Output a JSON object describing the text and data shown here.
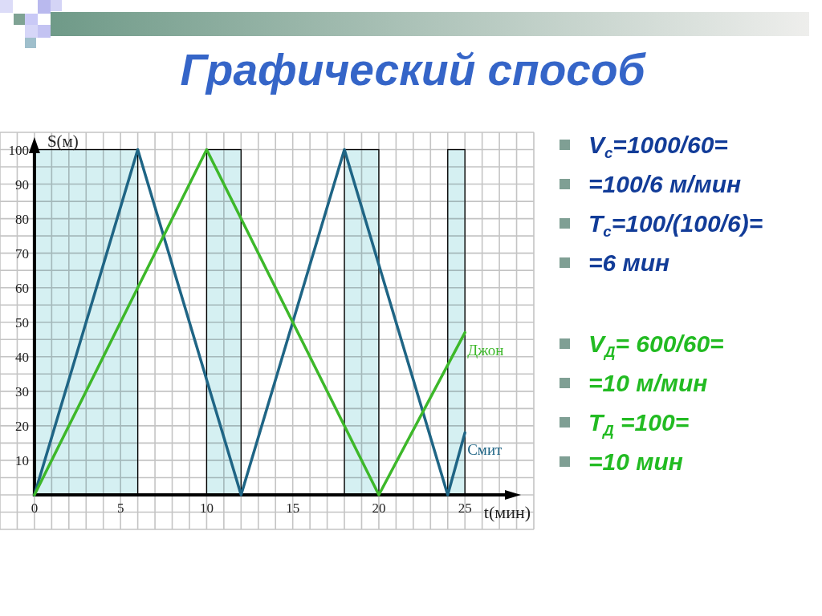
{
  "chart_data": {
    "type": "line",
    "title": "Графический способ",
    "xlabel": "t(мин)",
    "ylabel": "S(м)",
    "xlim": [
      -2,
      29
    ],
    "ylim": [
      -10,
      105
    ],
    "xticks": [
      {
        "value": -2,
        "label": null
      },
      {
        "value": -1,
        "label": null
      },
      0,
      {
        "value": 1,
        "label": null
      },
      {
        "value": 2,
        "label": null
      },
      {
        "value": 3,
        "label": null
      },
      {
        "value": 4,
        "label": null
      },
      5,
      {
        "value": 6,
        "label": null
      },
      {
        "value": 7,
        "label": null
      },
      {
        "value": 8,
        "label": null
      },
      {
        "value": 9,
        "label": null
      },
      10,
      {
        "value": 11,
        "label": null
      },
      {
        "value": 12,
        "label": null
      },
      {
        "value": 13,
        "label": null
      },
      {
        "value": 14,
        "label": null
      },
      15,
      {
        "value": 16,
        "label": null
      },
      {
        "value": 17,
        "label": null
      },
      {
        "value": 18,
        "label": null
      },
      {
        "value": 19,
        "label": null
      },
      20,
      {
        "value": 21,
        "label": null
      },
      {
        "value": 22,
        "label": null
      },
      {
        "value": 23,
        "label": null
      },
      {
        "value": 24,
        "label": null
      },
      25,
      {
        "value": 26,
        "label": null
      },
      {
        "value": 27,
        "label": null
      },
      {
        "value": 28,
        "label": null
      },
      {
        "value": 29,
        "label": null
      }
    ],
    "yticks": [
      {
        "value": -10,
        "label": null
      },
      {
        "value": -5,
        "label": null
      },
      {
        "value": 0,
        "label": null
      },
      {
        "value": 5,
        "label": null
      },
      10,
      {
        "value": 15,
        "label": null
      },
      20,
      {
        "value": 25,
        "label": null
      },
      30,
      {
        "value": 35,
        "label": null
      },
      40,
      {
        "value": 45,
        "label": null
      },
      50,
      {
        "value": 55,
        "label": null
      },
      60,
      {
        "value": 65,
        "label": null
      },
      70,
      {
        "value": 75,
        "label": null
      },
      80,
      {
        "value": 85,
        "label": null
      },
      90,
      {
        "value": 95,
        "label": null
      },
      100,
      {
        "value": 105,
        "label": null
      }
    ],
    "grid": true,
    "series": [
      {
        "name": "Смит",
        "color": "#1f6585",
        "x": [
          0,
          6,
          12,
          18,
          24,
          25
        ],
        "values": [
          0,
          100,
          0,
          100,
          0,
          18
        ]
      },
      {
        "name": "Джон",
        "color": "#3db82a",
        "x": [
          0,
          10,
          20,
          25
        ],
        "values": [
          0,
          100,
          0,
          47
        ]
      }
    ],
    "bands": [
      {
        "axis": "x",
        "from": 0,
        "to": 6,
        "color": "#d5f0f2"
      },
      {
        "axis": "x",
        "from": 10,
        "to": 12,
        "color": "#d5f0f2"
      },
      {
        "axis": "x",
        "from": 18,
        "to": 20,
        "color": "#d5f0f2"
      },
      {
        "axis": "x",
        "from": 24,
        "to": 25,
        "color": "#d5f0f2"
      }
    ],
    "annotations": [
      "V$_{с}$=1000/60=",
      "=100/6 м/мин",
      "T$_{с}$=100/(100/6)=",
      "=6 мин",
      "V$_{Д}$= 600/60=",
      "=10 м/мин",
      "T$_{Д}$ =100=",
      "=10 мин"
    ]
  }
}
